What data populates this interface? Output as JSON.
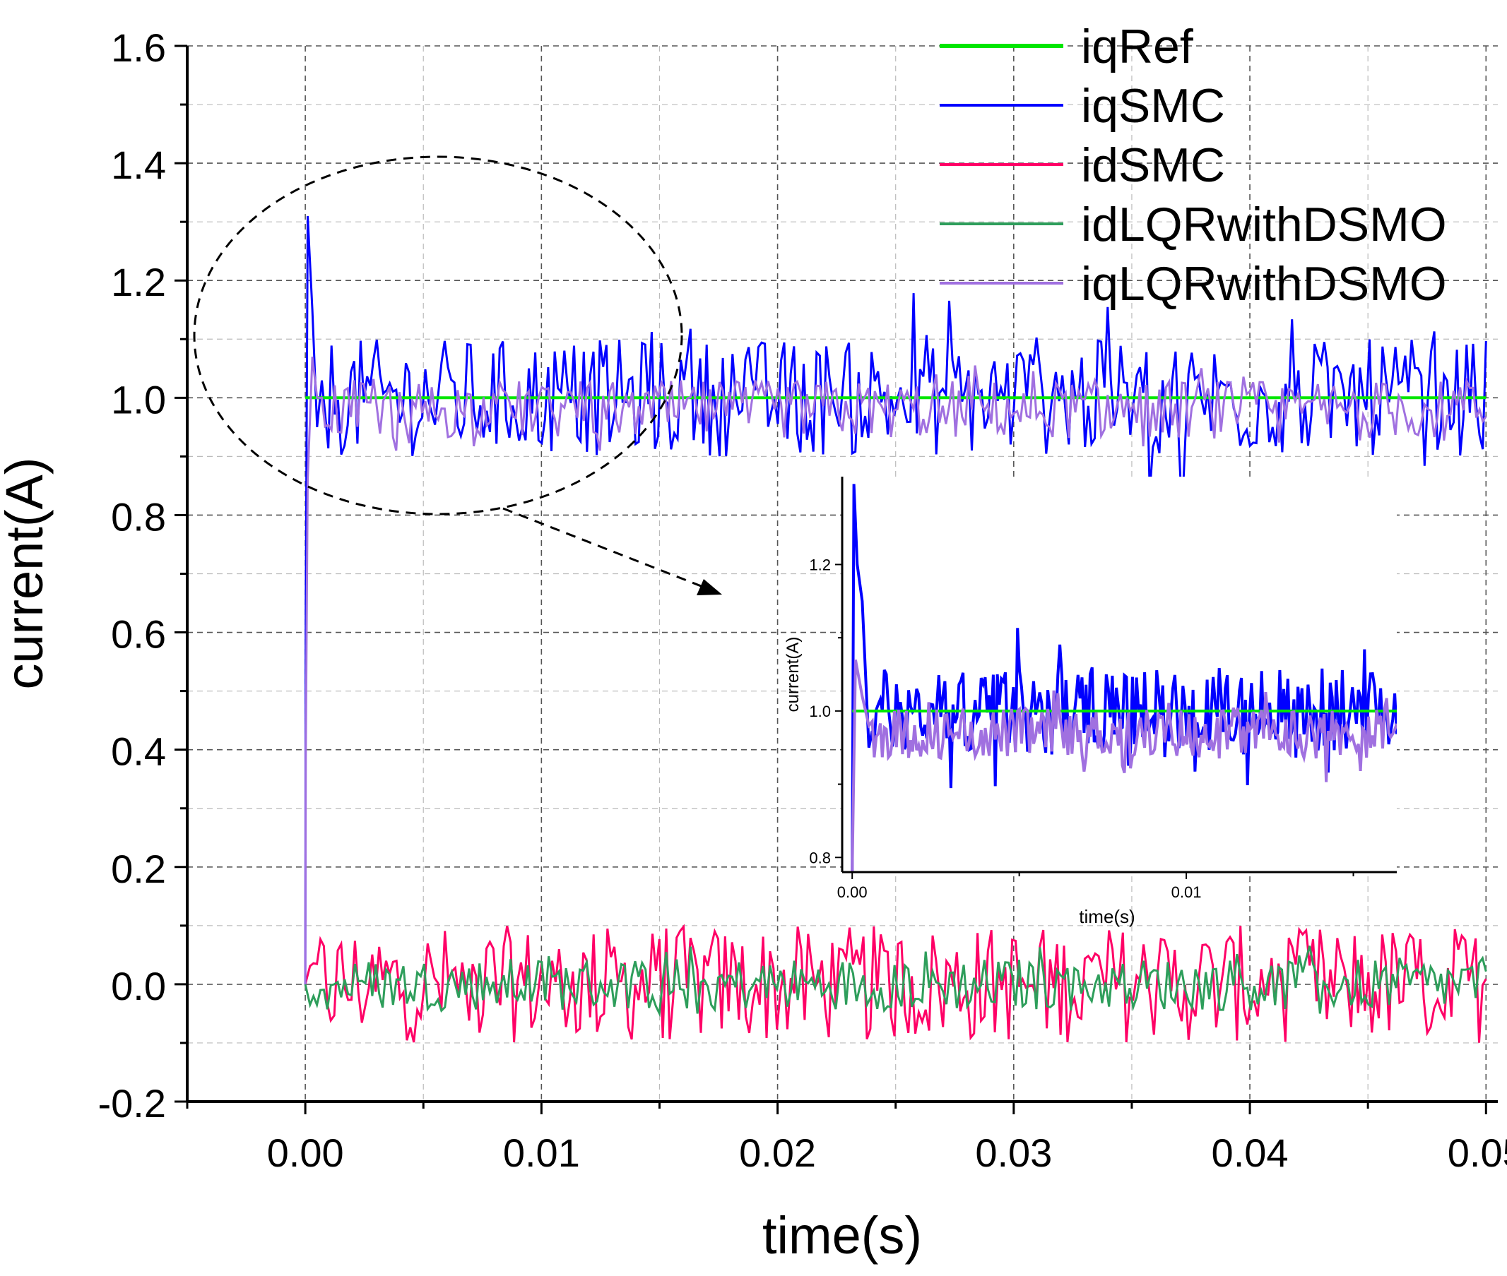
{
  "chart_data": [
    {
      "type": "line",
      "xlabel": "time(s)",
      "ylabel": "current(A)",
      "xlim": [
        -0.005,
        0.0505
      ],
      "ylim": [
        -0.2,
        1.6
      ],
      "xticks": [
        0.0,
        0.01,
        0.02,
        0.03,
        0.04,
        0.05
      ],
      "xtick_labels": [
        "0.00",
        "0.01",
        "0.02",
        "0.03",
        "0.04",
        "0.05"
      ],
      "yticks": [
        -0.2,
        0.0,
        0.2,
        0.4,
        0.6,
        0.8,
        1.0,
        1.2,
        1.4,
        1.6
      ],
      "ytick_labels": [
        "-0.2",
        "0.0",
        "0.2",
        "0.4",
        "0.6",
        "0.8",
        "1.0",
        "1.2",
        "1.4",
        "1.6"
      ],
      "grid": true,
      "legend_position": "top-right",
      "series": [
        {
          "name": "iqRef",
          "color": "#00e600",
          "description": "constant reference",
          "values": [
            [
              0.0,
              1.0
            ],
            [
              0.05,
              1.0
            ]
          ]
        },
        {
          "name": "iqSMC",
          "color": "#0000ff",
          "initial_peak": 1.31,
          "mean": 1.0,
          "noise_amplitude": 0.1,
          "min": 0.78,
          "max": 1.2
        },
        {
          "name": "idSMC",
          "color": "#ff0066",
          "mean": 0.0,
          "noise_amplitude": 0.1,
          "min": -0.1,
          "max": 0.1
        },
        {
          "name": "idLQRwithDSMO",
          "color": "#2e9e5b",
          "mean": 0.0,
          "noise_amplitude": 0.045,
          "min": -0.05,
          "max": 0.07
        },
        {
          "name": "iqLQRwithDSMO",
          "color": "#a070e0",
          "initial_peak": 1.07,
          "mean": 0.98,
          "noise_amplitude": 0.05,
          "min": 0.91,
          "max": 1.06
        }
      ],
      "annotations": [
        "dashed ellipse around t=0.0 to 0.018 s, current 0.8 to 1.4 A",
        "dashed arrow pointing to zoomed inset"
      ]
    },
    {
      "type": "line",
      "role": "inset",
      "xlabel": "time(s)",
      "ylabel": "current(A)",
      "xlim": [
        -0.0003,
        0.0163
      ],
      "ylim": [
        0.78,
        1.32
      ],
      "xticks": [
        0.0,
        0.01
      ],
      "xtick_labels": [
        "0.00",
        "0.01"
      ],
      "yticks": [
        0.8,
        1.0,
        1.2
      ],
      "ytick_labels": [
        "0.8",
        "1.0",
        "1.2"
      ],
      "grid": false,
      "series": [
        {
          "name": "iqRef",
          "color": "#00e600",
          "values": [
            [
              0.0,
              1.0
            ],
            [
              0.0163,
              1.0
            ]
          ]
        },
        {
          "name": "iqSMC",
          "color": "#0000ff",
          "initial_peak": 1.31,
          "mean": 1.0,
          "min": 0.87,
          "max": 1.31
        },
        {
          "name": "iqLQRwithDSMO",
          "color": "#a070e0",
          "mean": 0.97,
          "min": 0.9,
          "max": 1.07
        }
      ]
    }
  ]
}
